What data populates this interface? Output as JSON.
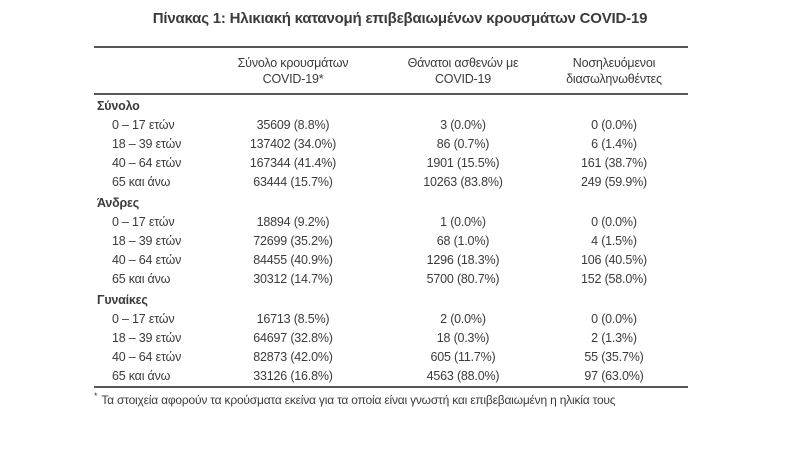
{
  "title": "Πίνακας 1: Ηλικιακή κατανομή επιβεβαιωμένων κρουσμάτων COVID-19",
  "colors": {
    "rule": "#55565a",
    "text": "#3b3b3b",
    "background": "#ffffff"
  },
  "table": {
    "columns": [
      {
        "line1": "Σύνολο κρουσμάτων",
        "line2": "COVID-19*"
      },
      {
        "line1": "Θάνατοι ασθενών με",
        "line2": "COVID-19"
      },
      {
        "line1": "Νοσηλευόμενοι",
        "line2": "διασωληνωθέντες"
      }
    ],
    "sections": [
      {
        "label": "Σύνολο",
        "rows": [
          {
            "age": "0 – 17 ετών",
            "cases": "35609 (8.8%)",
            "deaths": "3 (0.0%)",
            "intubated": "0 (0.0%)"
          },
          {
            "age": "18 – 39 ετών",
            "cases": "137402 (34.0%)",
            "deaths": "86 (0.7%)",
            "intubated": "6 (1.4%)"
          },
          {
            "age": "40 – 64 ετών",
            "cases": "167344 (41.4%)",
            "deaths": "1901 (15.5%)",
            "intubated": "161 (38.7%)"
          },
          {
            "age": "65 και άνω",
            "cases": "63444 (15.7%)",
            "deaths": "10263 (83.8%)",
            "intubated": "249 (59.9%)"
          }
        ]
      },
      {
        "label": "Άνδρες",
        "rows": [
          {
            "age": "0 – 17 ετών",
            "cases": "18894 (9.2%)",
            "deaths": "1 (0.0%)",
            "intubated": "0 (0.0%)"
          },
          {
            "age": "18 – 39 ετών",
            "cases": "72699 (35.2%)",
            "deaths": "68 (1.0%)",
            "intubated": "4 (1.5%)"
          },
          {
            "age": "40 – 64 ετών",
            "cases": "84455 (40.9%)",
            "deaths": "1296 (18.3%)",
            "intubated": "106 (40.5%)"
          },
          {
            "age": "65 και άνω",
            "cases": "30312 (14.7%)",
            "deaths": "5700 (80.7%)",
            "intubated": "152 (58.0%)"
          }
        ]
      },
      {
        "label": "Γυναίκες",
        "rows": [
          {
            "age": "0 – 17 ετών",
            "cases": "16713 (8.5%)",
            "deaths": "2 (0.0%)",
            "intubated": "0 (0.0%)"
          },
          {
            "age": "18 – 39 ετών",
            "cases": "64697 (32.8%)",
            "deaths": "18 (0.3%)",
            "intubated": "2 (1.3%)"
          },
          {
            "age": "40 – 64 ετών",
            "cases": "82873 (42.0%)",
            "deaths": "605 (11.7%)",
            "intubated": "55 (35.7%)"
          },
          {
            "age": "65 και άνω",
            "cases": "33126 (16.8%)",
            "deaths": "4563 (88.0%)",
            "intubated": "97 (63.0%)"
          }
        ]
      }
    ]
  },
  "footnote": {
    "marker": "*",
    "text": "Τα στοιχεία αφορούν τα κρούσματα εκείνα για τα οποία είναι γνωστή και επιβεβαιωμένη η ηλικία τους"
  }
}
